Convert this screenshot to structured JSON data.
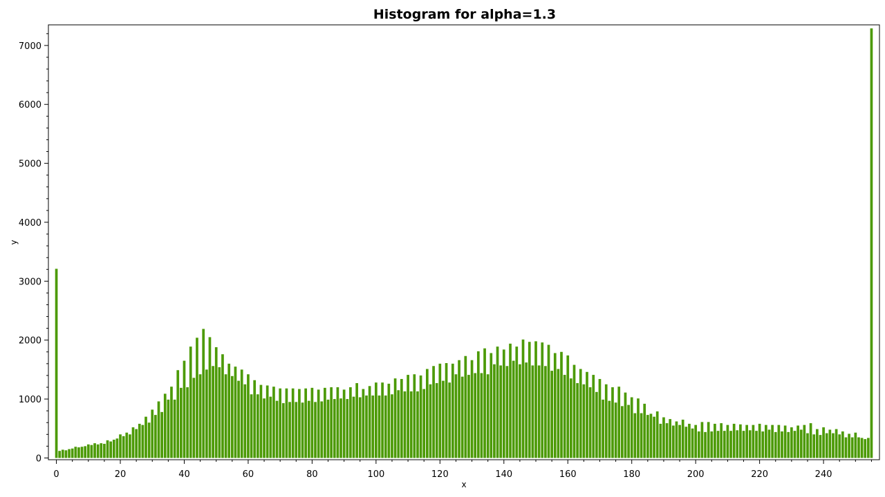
{
  "chart_data": {
    "type": "bar",
    "title": "Histogram for alpha=1.3",
    "xlabel": "x",
    "ylabel": "y",
    "xlim": [
      -2.5,
      257.5
    ],
    "ylim": [
      -30,
      7350
    ],
    "xticks": [
      0,
      20,
      40,
      60,
      80,
      100,
      120,
      140,
      160,
      180,
      200,
      220,
      240
    ],
    "yticks": [
      0,
      1000,
      2000,
      3000,
      4000,
      5000,
      6000,
      7000
    ],
    "grid": false,
    "bar_color": "#4c9a06",
    "x": [
      0,
      1,
      2,
      3,
      4,
      5,
      6,
      7,
      8,
      9,
      10,
      11,
      12,
      13,
      14,
      15,
      16,
      17,
      18,
      19,
      20,
      21,
      22,
      23,
      24,
      25,
      26,
      27,
      28,
      29,
      30,
      31,
      32,
      33,
      34,
      35,
      36,
      37,
      38,
      39,
      40,
      41,
      42,
      43,
      44,
      45,
      46,
      47,
      48,
      49,
      50,
      51,
      52,
      53,
      54,
      55,
      56,
      57,
      58,
      59,
      60,
      61,
      62,
      63,
      64,
      65,
      66,
      67,
      68,
      69,
      70,
      71,
      72,
      73,
      74,
      75,
      76,
      77,
      78,
      79,
      80,
      81,
      82,
      83,
      84,
      85,
      86,
      87,
      88,
      89,
      90,
      91,
      92,
      93,
      94,
      95,
      96,
      97,
      98,
      99,
      100,
      101,
      102,
      103,
      104,
      105,
      106,
      107,
      108,
      109,
      110,
      111,
      112,
      113,
      114,
      115,
      116,
      117,
      118,
      119,
      120,
      121,
      122,
      123,
      124,
      125,
      126,
      127,
      128,
      129,
      130,
      131,
      132,
      133,
      134,
      135,
      136,
      137,
      138,
      139,
      140,
      141,
      142,
      143,
      144,
      145,
      146,
      147,
      148,
      149,
      150,
      151,
      152,
      153,
      154,
      155,
      156,
      157,
      158,
      159,
      160,
      161,
      162,
      163,
      164,
      165,
      166,
      167,
      168,
      169,
      170,
      171,
      172,
      173,
      174,
      175,
      176,
      177,
      178,
      179,
      180,
      181,
      182,
      183,
      184,
      185,
      186,
      187,
      188,
      189,
      190,
      191,
      192,
      193,
      194,
      195,
      196,
      197,
      198,
      199,
      200,
      201,
      202,
      203,
      204,
      205,
      206,
      207,
      208,
      209,
      210,
      211,
      212,
      213,
      214,
      215,
      216,
      217,
      218,
      219,
      220,
      221,
      222,
      223,
      224,
      225,
      226,
      227,
      228,
      229,
      230,
      231,
      232,
      233,
      234,
      235,
      236,
      237,
      238,
      239,
      240,
      241,
      242,
      243,
      244,
      245,
      246,
      247,
      248,
      249,
      250,
      251,
      252,
      253,
      254,
      255
    ],
    "values": [
      3210,
      120,
      140,
      130,
      150,
      160,
      190,
      180,
      190,
      200,
      230,
      220,
      250,
      230,
      250,
      240,
      300,
      280,
      310,
      330,
      400,
      370,
      430,
      400,
      520,
      490,
      580,
      560,
      700,
      600,
      820,
      730,
      960,
      780,
      1090,
      990,
      1210,
      990,
      1490,
      1190,
      1650,
      1200,
      1890,
      1360,
      2040,
      1420,
      2190,
      1500,
      2050,
      1560,
      1880,
      1540,
      1760,
      1420,
      1600,
      1390,
      1550,
      1310,
      1500,
      1250,
      1420,
      1080,
      1320,
      1080,
      1240,
      1010,
      1230,
      1040,
      1210,
      970,
      1180,
      930,
      1180,
      950,
      1180,
      950,
      1170,
      940,
      1180,
      970,
      1190,
      950,
      1160,
      960,
      1190,
      990,
      1200,
      1000,
      1200,
      1010,
      1160,
      1000,
      1200,
      1040,
      1270,
      1030,
      1170,
      1060,
      1220,
      1060,
      1280,
      1060,
      1280,
      1060,
      1260,
      1080,
      1350,
      1150,
      1340,
      1130,
      1410,
      1130,
      1420,
      1130,
      1400,
      1170,
      1510,
      1250,
      1560,
      1270,
      1600,
      1310,
      1610,
      1280,
      1600,
      1420,
      1660,
      1380,
      1730,
      1410,
      1660,
      1440,
      1810,
      1440,
      1860,
      1420,
      1780,
      1590,
      1890,
      1570,
      1840,
      1560,
      1940,
      1650,
      1890,
      1590,
      2010,
      1620,
      1970,
      1570,
      1980,
      1570,
      1960,
      1560,
      1920,
      1480,
      1780,
      1510,
      1800,
      1410,
      1740,
      1350,
      1580,
      1270,
      1510,
      1250,
      1460,
      1200,
      1410,
      1120,
      1340,
      990,
      1250,
      970,
      1200,
      940,
      1210,
      880,
      1110,
      900,
      1030,
      760,
      1010,
      760,
      920,
      730,
      750,
      700,
      790,
      580,
      690,
      590,
      660,
      550,
      620,
      560,
      650,
      530,
      580,
      500,
      560,
      450,
      610,
      440,
      610,
      450,
      580,
      460,
      590,
      460,
      560,
      460,
      580,
      470,
      570,
      460,
      560,
      470,
      560,
      460,
      580,
      450,
      560,
      480,
      560,
      440,
      560,
      450,
      550,
      440,
      520,
      460,
      550,
      480,
      560,
      420,
      590,
      400,
      490,
      390,
      520,
      420,
      480,
      420,
      490,
      400,
      450,
      350,
      410,
      350,
      430,
      350,
      340,
      320,
      340,
      7290
    ]
  }
}
